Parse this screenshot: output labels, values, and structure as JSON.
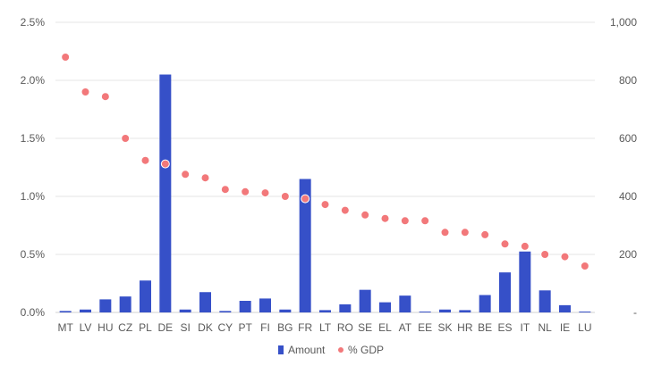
{
  "chart_data": {
    "type": "bar",
    "categories": [
      "MT",
      "LV",
      "HU",
      "CZ",
      "PL",
      "DE",
      "SI",
      "DK",
      "CY",
      "PT",
      "FI",
      "BG",
      "FR",
      "LT",
      "RO",
      "SE",
      "EL",
      "AT",
      "EE",
      "SK",
      "HR",
      "BE",
      "ES",
      "IT",
      "NL",
      "IE",
      "LU"
    ],
    "series": [
      {
        "name": "Amount",
        "type": "bar",
        "axis": "right",
        "color": "#3650c8",
        "values": [
          5,
          10,
          45,
          55,
          110,
          820,
          10,
          70,
          5,
          40,
          48,
          10,
          460,
          8,
          28,
          78,
          35,
          58,
          3,
          10,
          8,
          60,
          138,
          210,
          76,
          25,
          3
        ]
      },
      {
        "name": "% GDP",
        "type": "scatter",
        "axis": "left",
        "color": "#f2787a",
        "values": [
          2.2,
          1.9,
          1.86,
          1.5,
          1.31,
          1.28,
          1.19,
          1.16,
          1.06,
          1.04,
          1.03,
          1.0,
          0.98,
          0.93,
          0.88,
          0.84,
          0.81,
          0.79,
          0.79,
          0.69,
          0.69,
          0.67,
          0.59,
          0.57,
          0.5,
          0.48,
          0.4
        ]
      }
    ],
    "y_left": {
      "min": 0,
      "max": 2.5,
      "ticks": [
        "0.0%",
        "0.5%",
        "1.0%",
        "1.5%",
        "2.0%",
        "2.5%"
      ]
    },
    "y_right": {
      "min": 0,
      "max": 1000,
      "ticks": [
        "-",
        "200",
        "400",
        "600",
        "800",
        "1,000"
      ]
    },
    "grid": true,
    "legend_position": "bottom"
  }
}
